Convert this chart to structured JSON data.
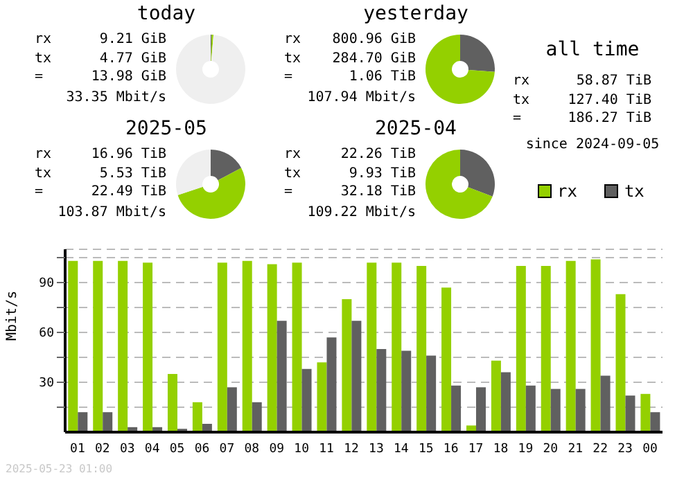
{
  "chart_data": [
    {
      "type": "donut",
      "title": "today",
      "categories": [
        null,
        null,
        null
      ],
      "values": [
        0.44,
        0.85,
        98.71
      ],
      "colors": [
        "#606060",
        "#94d000",
        "#efefef"
      ],
      "annotations": [
        "rx 9.21 GiB",
        "tx 4.77 GiB",
        "= 13.98 GiB",
        "33.35 Mbit/s"
      ]
    },
    {
      "type": "donut",
      "title": "yesterday",
      "categories": [
        null,
        null,
        null
      ],
      "values": [
        26.2,
        73.8,
        0
      ],
      "colors": [
        "#606060",
        "#94d000",
        "#efefef"
      ],
      "annotations": [
        "rx 800.96 GiB",
        "tx 284.70 GiB",
        "= 1.06 TiB",
        "107.94 Mbit/s"
      ]
    },
    {
      "type": "other",
      "title": "all time",
      "annotations": [
        "rx 58.87 TiB",
        "tx 127.40 TiB",
        "= 186.27 TiB",
        "since 2024-09-05"
      ]
    },
    {
      "type": "donut",
      "title": "2025-05",
      "categories": [
        null,
        null,
        null
      ],
      "values": [
        17.2,
        52.7,
        30.1
      ],
      "colors": [
        "#606060",
        "#94d000",
        "#efefef"
      ],
      "annotations": [
        "rx 16.96 TiB",
        "tx 5.53 TiB",
        "= 22.49 TiB",
        "103.87 Mbit/s"
      ]
    },
    {
      "type": "donut",
      "title": "2025-04",
      "categories": [
        null,
        null,
        null
      ],
      "values": [
        30.8,
        69.2,
        0
      ],
      "colors": [
        "#606060",
        "#94d000",
        "#efefef"
      ],
      "annotations": [
        "rx 22.26 TiB",
        "tx 9.93 TiB",
        "= 32.18 TiB",
        "109.22 Mbit/s"
      ]
    },
    {
      "type": "bar",
      "ylabel": "Mbit/s",
      "categories": [
        "01",
        "02",
        "03",
        "04",
        "05",
        "06",
        "07",
        "08",
        "09",
        "10",
        "11",
        "12",
        "13",
        "14",
        "15",
        "16",
        "17",
        "18",
        "19",
        "20",
        "21",
        "22",
        "23",
        "00"
      ],
      "series": [
        {
          "name": "rx",
          "color": "#94d000",
          "values": [
            103,
            103,
            103,
            102,
            35,
            18,
            102,
            103,
            101,
            102,
            42,
            80,
            102,
            102,
            100,
            87,
            4,
            43,
            100,
            100,
            103,
            104,
            83,
            23
          ]
        },
        {
          "name": "tx",
          "color": "#606060",
          "values": [
            12,
            12,
            3,
            3,
            2,
            5,
            27,
            18,
            67,
            38,
            57,
            67,
            50,
            49,
            46,
            28,
            27,
            36,
            28,
            26,
            26,
            34,
            22,
            12
          ]
        }
      ],
      "ylim": [
        0,
        110
      ],
      "yticks": [
        {
          "value": 15,
          "label": null
        },
        30,
        {
          "value": 45,
          "label": null
        },
        60,
        {
          "value": 75,
          "label": null
        },
        90,
        {
          "value": 105,
          "label": null
        }
      ],
      "grid": "y",
      "legend": "top right",
      "annotations": [
        "2025-05-23 01:00"
      ]
    }
  ]
}
